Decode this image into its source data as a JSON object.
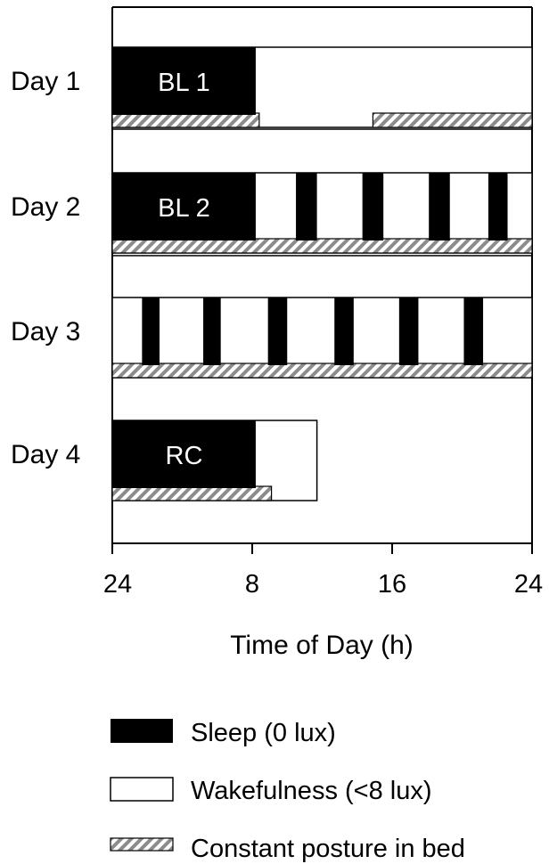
{
  "chart_data": {
    "type": "timeline",
    "xlabel": "Time of Day (h)",
    "x_ticks": [
      "24",
      "8",
      "16",
      "24"
    ],
    "x_range_hours": [
      0,
      24
    ],
    "days": [
      {
        "label": "Day 1",
        "bar_label": "BL 1",
        "wake_range": [
          0,
          24
        ],
        "sleep": [
          [
            0,
            8.2
          ]
        ],
        "posture": [
          [
            0,
            8.4
          ],
          [
            14.9,
            24
          ]
        ]
      },
      {
        "label": "Day 2",
        "bar_label": "BL 2",
        "wake_range": [
          0,
          24
        ],
        "sleep": [
          [
            0,
            8.2
          ],
          [
            10.5,
            11.7
          ],
          [
            14.3,
            15.5
          ],
          [
            18.1,
            19.3
          ],
          [
            21.5,
            22.6
          ]
        ],
        "posture": [
          [
            0,
            24
          ]
        ]
      },
      {
        "label": "Day 3",
        "bar_label": "",
        "wake_range": [
          0,
          24
        ],
        "sleep": [
          [
            1.7,
            2.7
          ],
          [
            5.2,
            6.2
          ],
          [
            8.9,
            10.0
          ],
          [
            12.7,
            13.8
          ],
          [
            16.4,
            17.5
          ],
          [
            20.1,
            21.2
          ]
        ],
        "posture": [
          [
            0,
            24
          ]
        ]
      },
      {
        "label": "Day 4",
        "bar_label": "RC",
        "wake_range": [
          0,
          11.7
        ],
        "sleep": [
          [
            0,
            8.2
          ]
        ],
        "posture": [
          [
            0,
            9.1
          ]
        ]
      }
    ],
    "legend": [
      {
        "key": "sleep",
        "label": "Sleep (0 lux)"
      },
      {
        "key": "wake",
        "label": "Wakefulness (<8 lux)"
      },
      {
        "key": "posture",
        "label": "Constant posture in bed"
      }
    ],
    "colors": {
      "sleep": "#000000",
      "wake": "#ffffff",
      "posture_stripe": "#8c8c8c",
      "posture_bg": "#ffffff",
      "axis": "#000000"
    }
  }
}
